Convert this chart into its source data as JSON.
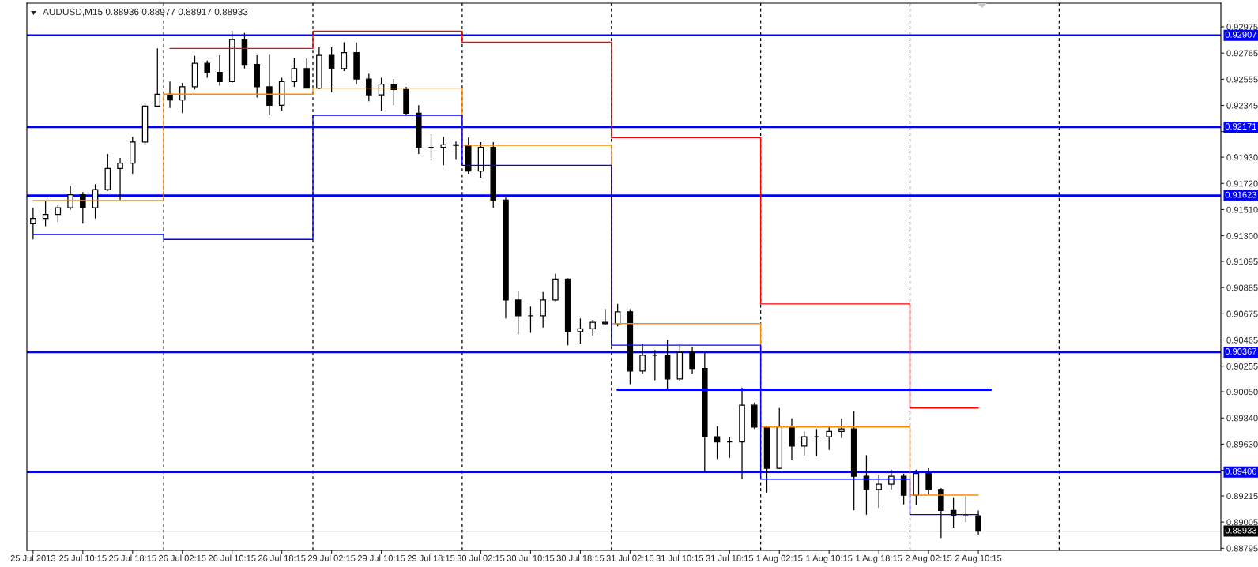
{
  "chart_data": {
    "type": "candlestick",
    "title": "AUDUSD,M15 0.88936 0.88977 0.88917 0.88933",
    "color": "#000000",
    "categories": [
      "25 Jul 2013",
      null,
      null,
      null,
      "25 Jul 10:15",
      null,
      null,
      null,
      "25 Jul 18:15",
      null,
      null,
      null,
      "26 Jul 02:15",
      null,
      null,
      null,
      "26 Jul 10:15",
      null,
      null,
      null,
      "26 Jul 18:15",
      null,
      null,
      null,
      "29 Jul 02:15",
      null,
      null,
      null,
      "29 Jul 10:15",
      null,
      null,
      null,
      "29 Jul 18:15",
      null,
      null,
      null,
      "30 Jul 02:15",
      null,
      null,
      null,
      "30 Jul 10:15",
      null,
      null,
      null,
      "30 Jul 18:15",
      null,
      null,
      null,
      "31 Jul 02:15",
      null,
      null,
      null,
      "31 Jul 10:15",
      null,
      null,
      null,
      "31 Jul 18:15",
      null,
      null,
      null,
      "1 Aug 02:15",
      null,
      null,
      null,
      "1 Aug 10:15",
      null,
      null,
      null,
      "1 Aug 18:15",
      null,
      null,
      null,
      "2 Aug 02:15",
      null,
      null,
      null,
      "2 Aug 10:15",
      null,
      null,
      null,
      null,
      null,
      null,
      null,
      null,
      null,
      null,
      null,
      null,
      null,
      null,
      null,
      null,
      null,
      null,
      null
    ],
    "ohlc": [
      [
        0.91397,
        0.91524,
        0.91271,
        0.91439
      ],
      [
        0.91439,
        0.91576,
        0.91376,
        0.91471
      ],
      [
        0.91471,
        0.91545,
        0.91408,
        0.91524
      ],
      [
        0.91524,
        0.91703,
        0.9151,
        0.91629
      ],
      [
        0.91629,
        0.9165,
        0.91397,
        0.91524
      ],
      [
        0.91524,
        0.91713,
        0.91439,
        0.91671
      ],
      [
        0.91671,
        0.91956,
        0.9166,
        0.9184
      ],
      [
        0.9184,
        0.91924,
        0.91587,
        0.91882
      ],
      [
        0.91882,
        0.92093,
        0.91798,
        0.92051
      ],
      [
        0.92051,
        0.9236,
        0.9203,
        0.9234
      ],
      [
        0.9234,
        0.92802,
        0.9233,
        0.92435
      ],
      [
        0.92435,
        0.92536,
        0.92325,
        0.92388
      ],
      [
        0.92388,
        0.92525,
        0.92283,
        0.92494
      ],
      [
        0.92494,
        0.92743,
        0.92473,
        0.92683
      ],
      [
        0.92683,
        0.92705,
        0.92567,
        0.9261
      ],
      [
        0.9261,
        0.92747,
        0.92504,
        0.92536
      ],
      [
        0.92536,
        0.92941,
        0.92525,
        0.92873
      ],
      [
        0.92873,
        0.92926,
        0.92641,
        0.92673
      ],
      [
        0.92673,
        0.92747,
        0.92409,
        0.92494
      ],
      [
        0.92494,
        0.92751,
        0.92266,
        0.92346
      ],
      [
        0.92346,
        0.92567,
        0.92304,
        0.92536
      ],
      [
        0.92536,
        0.92726,
        0.92494,
        0.92641
      ],
      [
        0.92641,
        0.92721,
        0.9248,
        0.92484
      ],
      [
        0.92484,
        0.9281,
        0.92475,
        0.92747
      ],
      [
        0.92747,
        0.9281,
        0.92451,
        0.92641
      ],
      [
        0.92641,
        0.92852,
        0.9262,
        0.92768
      ],
      [
        0.92768,
        0.9285,
        0.92515,
        0.92557
      ],
      [
        0.92557,
        0.92599,
        0.92378,
        0.9243
      ],
      [
        0.9243,
        0.92567,
        0.92304,
        0.92515
      ],
      [
        0.92515,
        0.92557,
        0.92346,
        0.92473
      ],
      [
        0.92473,
        0.92494,
        0.92272,
        0.92283
      ],
      [
        0.92283,
        0.92346,
        0.91956,
        0.92009
      ],
      [
        0.92009,
        0.92114,
        0.91903,
        0.92009
      ],
      [
        0.92009,
        0.92093,
        0.91865,
        0.9203
      ],
      [
        0.9203,
        0.92055,
        0.91914,
        0.92025
      ],
      [
        0.92025,
        0.92087,
        0.91798,
        0.91819
      ],
      [
        0.91819,
        0.92051,
        0.91766,
        0.92009
      ],
      [
        0.92009,
        0.92051,
        0.91524,
        0.91587
      ],
      [
        0.91587,
        0.91608,
        0.90638,
        0.90785
      ],
      [
        0.90785,
        0.90859,
        0.90511,
        0.90659
      ],
      [
        0.90659,
        0.90733,
        0.90522,
        0.90659
      ],
      [
        0.90659,
        0.90849,
        0.90564,
        0.90785
      ],
      [
        0.90785,
        0.90996,
        0.90775,
        0.90954
      ],
      [
        0.90954,
        0.9096,
        0.90423,
        0.90532
      ],
      [
        0.90532,
        0.90638,
        0.90437,
        0.90554
      ],
      [
        0.90554,
        0.90627,
        0.90501,
        0.90606
      ],
      [
        0.90606,
        0.90712,
        0.90585,
        0.90596
      ],
      [
        0.90596,
        0.90754,
        0.90575,
        0.90691
      ],
      [
        0.90691,
        0.90712,
        0.90111,
        0.90216
      ],
      [
        0.90216,
        0.90437,
        0.90195,
        0.90343
      ],
      [
        0.90343,
        0.90385,
        0.90142,
        0.90343
      ],
      [
        0.90343,
        0.90465,
        0.90068,
        0.90153
      ],
      [
        0.90153,
        0.90427,
        0.90132,
        0.90364
      ],
      [
        0.90364,
        0.90406,
        0.90195,
        0.90237
      ],
      [
        0.90237,
        0.90364,
        0.89404,
        0.89689
      ],
      [
        0.89689,
        0.89773,
        0.8951,
        0.89647
      ],
      [
        0.89647,
        0.89689,
        0.8952,
        0.89647
      ],
      [
        0.89647,
        0.90083,
        0.89349,
        0.89942
      ],
      [
        0.89942,
        0.89963,
        0.89752,
        0.89767
      ],
      [
        0.89767,
        0.89773,
        0.89242,
        0.89436
      ],
      [
        0.89436,
        0.89919,
        0.8943,
        0.89773
      ],
      [
        0.89773,
        0.89837,
        0.89499,
        0.89615
      ],
      [
        0.89615,
        0.89731,
        0.89541,
        0.89689
      ],
      [
        0.89689,
        0.89752,
        0.89531,
        0.89689
      ],
      [
        0.89689,
        0.89773,
        0.89583,
        0.89731
      ],
      [
        0.89731,
        0.89837,
        0.89679,
        0.89752
      ],
      [
        0.89752,
        0.89894,
        0.89099,
        0.89373
      ],
      [
        0.89373,
        0.89541,
        0.89065,
        0.89267
      ],
      [
        0.89267,
        0.89383,
        0.8912,
        0.89309
      ],
      [
        0.89309,
        0.89425,
        0.89267,
        0.89373
      ],
      [
        0.89373,
        0.89394,
        0.89147,
        0.89221
      ],
      [
        0.89221,
        0.89425,
        0.89141,
        0.89394
      ],
      [
        0.89394,
        0.89436,
        0.89225,
        0.89267
      ],
      [
        0.89267,
        0.89278,
        0.88877,
        0.89098
      ],
      [
        0.89098,
        0.89204,
        0.88961,
        0.89056
      ],
      [
        0.89056,
        0.89214,
        0.89004,
        0.89056
      ],
      [
        0.89056,
        0.89098,
        0.88905,
        0.88933
      ],
      null,
      null,
      null,
      null,
      null,
      null,
      null,
      null,
      null,
      null,
      null,
      null,
      null,
      null,
      null,
      null,
      null,
      null,
      null
    ],
    "ylim": [
      0.88778,
      0.93165
    ],
    "yticks": [
      0.92975,
      0.92765,
      0.92555,
      0.92345,
      {
        "value": 0.92135,
        "label": null
      },
      {
        "value": 0.9193,
        "label": "0.91930"
      },
      {
        "value": 0.9172,
        "label": "0.91720"
      },
      {
        "value": 0.9151,
        "label": "0.91510"
      },
      {
        "value": 0.913,
        "label": "0.91300"
      },
      0.91095,
      0.90885,
      0.90675,
      0.90465,
      0.90255,
      {
        "value": 0.9005,
        "label": "0.90050"
      },
      {
        "value": 0.8984,
        "label": "0.89840"
      },
      {
        "value": 0.8963,
        "label": "0.89630"
      },
      {
        "value": 0.8942,
        "label": null
      },
      0.89215,
      0.89005,
      0.88795
    ],
    "series": [
      {
        "type": "step",
        "color": "#ff0000",
        "values": [
          null,
          null,
          null,
          null,
          null,
          null,
          null,
          null,
          null,
          null,
          null,
          0.92802,
          0.92802,
          0.92802,
          0.92802,
          0.92802,
          0.92802,
          0.92802,
          0.92802,
          0.92802,
          0.92802,
          0.92802,
          0.92802,
          0.92941,
          0.92941,
          0.92941,
          0.92941,
          0.92941,
          0.92941,
          0.92941,
          0.92941,
          0.92941,
          0.92941,
          0.92941,
          0.92941,
          0.92852,
          0.92852,
          0.92852,
          0.92852,
          0.92852,
          0.92852,
          0.92852,
          0.92852,
          0.92852,
          0.92852,
          0.92852,
          0.92852,
          0.92087,
          0.92087,
          0.92087,
          0.92087,
          0.92087,
          0.92087,
          0.92087,
          0.92087,
          0.92087,
          0.92087,
          0.92087,
          0.92087,
          0.90754,
          0.90754,
          0.90754,
          0.90754,
          0.90754,
          0.90754,
          0.90754,
          0.90754,
          0.90754,
          0.90754,
          0.90754,
          0.90754,
          0.89919,
          0.89919,
          0.89919,
          0.89919,
          0.89919,
          0.89919,
          null,
          null,
          null,
          null,
          null,
          null,
          null,
          null,
          null,
          null,
          null,
          null,
          null,
          null,
          null,
          null,
          null,
          null,
          null
        ]
      },
      {
        "type": "step",
        "color": "#ff8c00",
        "values": [
          0.91583,
          0.91583,
          0.91583,
          0.91583,
          0.91583,
          0.91583,
          0.91583,
          0.91583,
          0.91583,
          0.91583,
          0.91583,
          0.92435,
          0.92435,
          0.92435,
          0.92435,
          0.92435,
          0.92435,
          0.92435,
          0.92435,
          0.92435,
          0.92435,
          0.92435,
          0.92435,
          0.92484,
          0.92484,
          0.92484,
          0.92484,
          0.92484,
          0.92484,
          0.92484,
          0.92484,
          0.92484,
          0.92484,
          0.92484,
          0.92484,
          0.92025,
          0.92025,
          0.92025,
          0.92025,
          0.92025,
          0.92025,
          0.92025,
          0.92025,
          0.92025,
          0.92025,
          0.92025,
          0.92025,
          0.90596,
          0.90596,
          0.90596,
          0.90596,
          0.90596,
          0.90596,
          0.90596,
          0.90596,
          0.90596,
          0.90596,
          0.90596,
          0.90596,
          0.89767,
          0.89767,
          0.89767,
          0.89767,
          0.89767,
          0.89767,
          0.89767,
          0.89767,
          0.89767,
          0.89767,
          0.89767,
          0.89767,
          0.89221,
          0.89221,
          0.89221,
          0.89221,
          0.89221,
          0.89221,
          null,
          null,
          null,
          null,
          null,
          null,
          null,
          null,
          null,
          null,
          null,
          null,
          null,
          null,
          null,
          null,
          null,
          null,
          null
        ]
      },
      {
        "type": "step",
        "color": "#0000ff",
        "values": [
          0.91311,
          0.91311,
          0.91311,
          0.91311,
          0.91311,
          0.91311,
          0.91311,
          0.91311,
          0.91311,
          0.91311,
          0.91311,
          0.91271,
          0.91271,
          0.91271,
          0.91271,
          0.91271,
          0.91271,
          0.91271,
          0.91271,
          0.91271,
          0.91271,
          0.91271,
          0.91271,
          0.92266,
          0.92266,
          0.92266,
          0.92266,
          0.92266,
          0.92266,
          0.92266,
          0.92266,
          0.92266,
          0.92266,
          0.92266,
          0.92266,
          0.91865,
          0.91865,
          0.91865,
          0.91865,
          0.91865,
          0.91865,
          0.91865,
          0.91865,
          0.91865,
          0.91865,
          0.91865,
          0.91865,
          0.90423,
          0.90423,
          0.90423,
          0.90423,
          0.90423,
          0.90423,
          0.90423,
          0.90423,
          0.90423,
          0.90423,
          0.90423,
          0.90423,
          0.89349,
          0.89349,
          0.89349,
          0.89349,
          0.89349,
          0.89349,
          0.89349,
          0.89349,
          0.89349,
          0.89349,
          0.89349,
          0.89349,
          0.89065,
          0.89065,
          0.89065,
          0.89065,
          0.89065,
          0.89065,
          null,
          null,
          null,
          null,
          null,
          null,
          null,
          null,
          null,
          null,
          null,
          null,
          null,
          null,
          null,
          null,
          null,
          null,
          null
        ]
      },
      {
        "type": "line",
        "color": "#0000ff",
        "values": [
          null,
          null,
          null,
          null,
          null,
          null,
          null,
          null,
          null,
          null,
          null,
          null,
          null,
          null,
          null,
          null,
          null,
          null,
          null,
          null,
          null,
          null,
          null,
          null,
          null,
          null,
          null,
          null,
          null,
          null,
          null,
          null,
          null,
          null,
          null,
          null,
          null,
          null,
          null,
          null,
          null,
          null,
          null,
          null,
          null,
          null,
          null,
          0.90066,
          0.90066,
          0.90066,
          0.90066,
          0.90066,
          0.90066,
          0.90066,
          0.90066,
          0.90066,
          0.90066,
          0.90066,
          0.90066,
          0.90066,
          0.90066,
          0.90066,
          0.90066,
          0.90066,
          0.90066,
          0.90066,
          0.90066,
          0.90066,
          0.90066,
          0.90066,
          0.90066,
          0.90066,
          0.90066,
          0.90066,
          0.90066,
          0.90066,
          0.90066,
          0.90066,
          null,
          null,
          null,
          null,
          null,
          null,
          null,
          null,
          null,
          null,
          null,
          null,
          null,
          null,
          null,
          null,
          null,
          null
        ]
      }
    ],
    "ref_lines": [
      {
        "axis": "y",
        "value": 0.92907,
        "label": "0.92907",
        "color": "#0000ff",
        "line_style": "solid"
      },
      {
        "axis": "y",
        "value": 0.92171,
        "label": "0.92171",
        "color": "#0000ff",
        "line_style": "solid"
      },
      {
        "axis": "y",
        "value": 0.91623,
        "label": "0.91623",
        "color": "#0000ff",
        "line_style": "solid"
      },
      {
        "axis": "y",
        "value": 0.90367,
        "label": "0.90367",
        "color": "#0000ff",
        "line_style": "solid"
      },
      {
        "axis": "y",
        "value": 0.89406,
        "label": "0.89406",
        "color": "#0000ff",
        "line_style": "solid"
      },
      {
        "axis": "y",
        "value": 0.88933,
        "label": "0.88933",
        "color": "#c0c0c0",
        "line_style": "solid"
      }
    ]
  }
}
